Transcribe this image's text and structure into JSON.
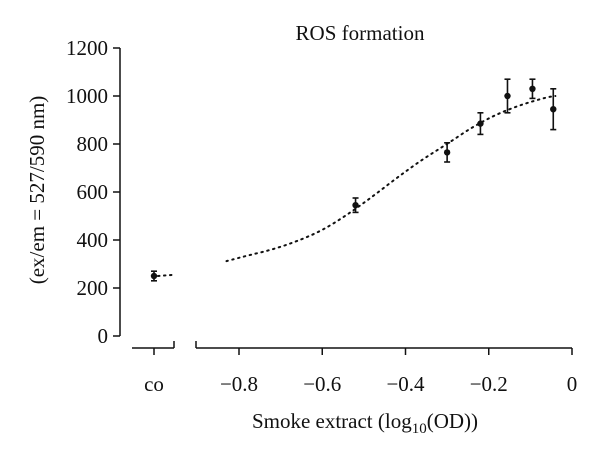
{
  "chart_data": {
    "type": "scatter",
    "title": "ROS formation",
    "ylabel": "(ex/em = 527/590 nm)",
    "xlabel_main": "Smoke extract (log",
    "xlabel_sub": "10",
    "xlabel_end": "(OD))",
    "xlim": [
      -0.9,
      0
    ],
    "ylim": [
      0,
      1200
    ],
    "y_ticks": [
      0,
      200,
      400,
      600,
      800,
      1000,
      1200
    ],
    "y_tick_labels": [
      "0",
      "200",
      "400",
      "600",
      "800",
      "1000",
      "1200"
    ],
    "x_ticks": [
      -0.8,
      -0.6,
      -0.4,
      -0.2,
      0
    ],
    "x_tick_labels": [
      "−0.8",
      "−0.6",
      "−0.4",
      "−0.2",
      "0"
    ],
    "control": {
      "label": "co",
      "y": 250,
      "err": 20,
      "line_to": 255
    },
    "points": [
      {
        "x": -0.52,
        "y": 545,
        "err": 30
      },
      {
        "x": -0.3,
        "y": 765,
        "err": 40
      },
      {
        "x": -0.22,
        "y": 885,
        "err": 45
      },
      {
        "x": -0.155,
        "y": 1000,
        "err": 70
      },
      {
        "x": -0.095,
        "y": 1030,
        "err": 40
      },
      {
        "x": -0.045,
        "y": 945,
        "err": 85
      }
    ],
    "fit_curve": [
      [
        -0.83,
        312
      ],
      [
        -0.78,
        335
      ],
      [
        -0.72,
        360
      ],
      [
        -0.66,
        395
      ],
      [
        -0.6,
        440
      ],
      [
        -0.54,
        505
      ],
      [
        -0.48,
        580
      ],
      [
        -0.42,
        660
      ],
      [
        -0.36,
        735
      ],
      [
        -0.3,
        800
      ],
      [
        -0.24,
        870
      ],
      [
        -0.18,
        925
      ],
      [
        -0.12,
        965
      ],
      [
        -0.06,
        995
      ],
      [
        -0.04,
        1000
      ]
    ],
    "grid": false
  }
}
